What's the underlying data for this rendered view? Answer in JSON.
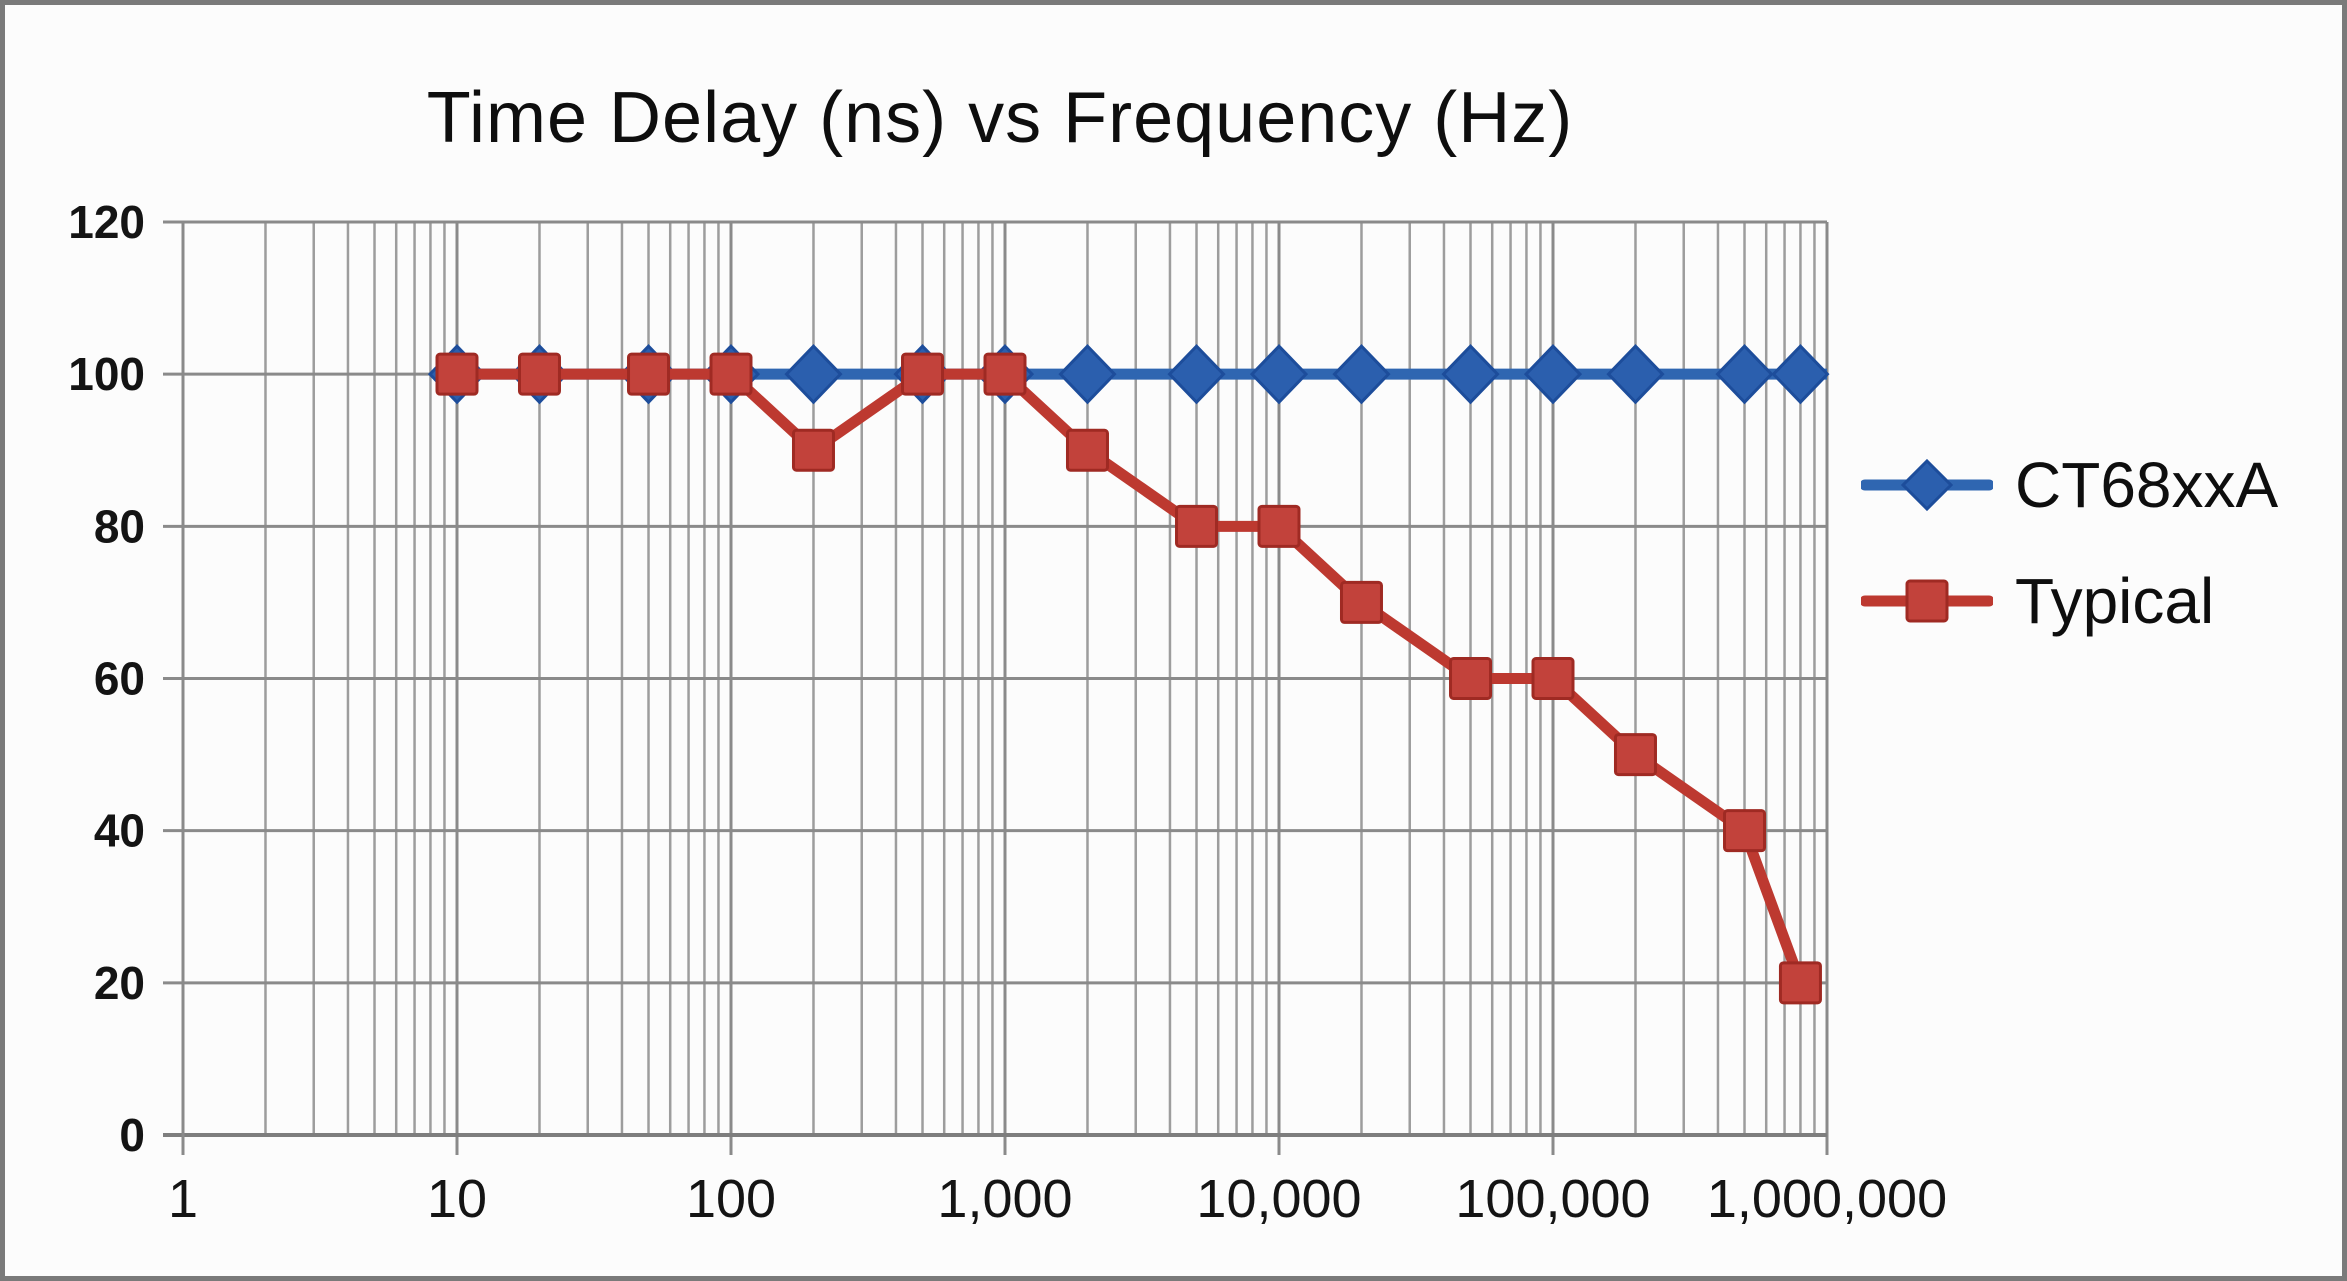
{
  "title": "Time Delay (ns) vs Frequency (Hz)",
  "legend": [
    {
      "label": "CT68xxA",
      "marker": "diamond",
      "color": "#2f66b1"
    },
    {
      "label": "Typical",
      "marker": "square",
      "color": "#bd3930"
    }
  ],
  "colors": {
    "background": "#fcfcfc",
    "frame_border": "#7a7a7a",
    "grid_minor": "#9d9d9d",
    "grid_major": "#8a8a8a",
    "axis_line": "#7e7e7e",
    "blue_line": "#2f66b1",
    "blue_marker_fill": "#2b5fae",
    "blue_marker_stroke": "#1d4d9b",
    "red_line": "#bd3930",
    "red_marker_fill": "#c2423b",
    "red_marker_stroke": "#9f2a23",
    "text": "#141414"
  },
  "chart_data": {
    "type": "line",
    "title": "Time Delay (ns) vs Frequency (Hz)",
    "xlabel": "Frequency (Hz)",
    "ylabel": "Time Delay (ns)",
    "x_scale": "log",
    "x_range": [
      1,
      1000000
    ],
    "y_range": [
      0,
      120
    ],
    "grid": "on",
    "legend_position": "right",
    "y_ticks": [
      0,
      20,
      40,
      60,
      80,
      100,
      120
    ],
    "x_ticks": [
      1,
      10,
      100,
      1000,
      10000,
      100000,
      1000000
    ],
    "x_tick_labels": [
      "1",
      "10",
      "100",
      "1,000",
      "10,000",
      "100,000",
      "1,000,000"
    ],
    "x": [
      10,
      20,
      50,
      100,
      200,
      500,
      1000,
      2000,
      5000,
      10000,
      20000,
      50000,
      100000,
      200000,
      500000,
      800000
    ],
    "series": [
      {
        "name": "CT68xxA",
        "marker": "diamond",
        "line_color": "#2f66b1",
        "marker_fill": "#2b5fae",
        "marker_stroke": "#1d4d9b",
        "x": [
          10,
          20,
          50,
          100,
          200,
          500,
          1000,
          2000,
          5000,
          10000,
          20000,
          50000,
          100000,
          200000,
          500000,
          800000,
          1000000
        ],
        "values": [
          100,
          100,
          100,
          100,
          100,
          100,
          100,
          100,
          100,
          100,
          100,
          100,
          100,
          100,
          100,
          100,
          100
        ],
        "marker_skip_last": true,
        "note": "line extends to 1,000,000 at plot edge without a visible final marker"
      },
      {
        "name": "Typical",
        "marker": "square",
        "line_color": "#bd3930",
        "marker_fill": "#c2423b",
        "marker_stroke": "#9f2a23",
        "x": [
          10,
          20,
          50,
          100,
          200,
          500,
          1000,
          2000,
          5000,
          10000,
          20000,
          50000,
          100000,
          200000,
          500000,
          800000
        ],
        "values": [
          100,
          100,
          100,
          100,
          90,
          100,
          100,
          90,
          80,
          80,
          70,
          60,
          60,
          50,
          40,
          20
        ],
        "marker_skip_last": false
      }
    ]
  }
}
